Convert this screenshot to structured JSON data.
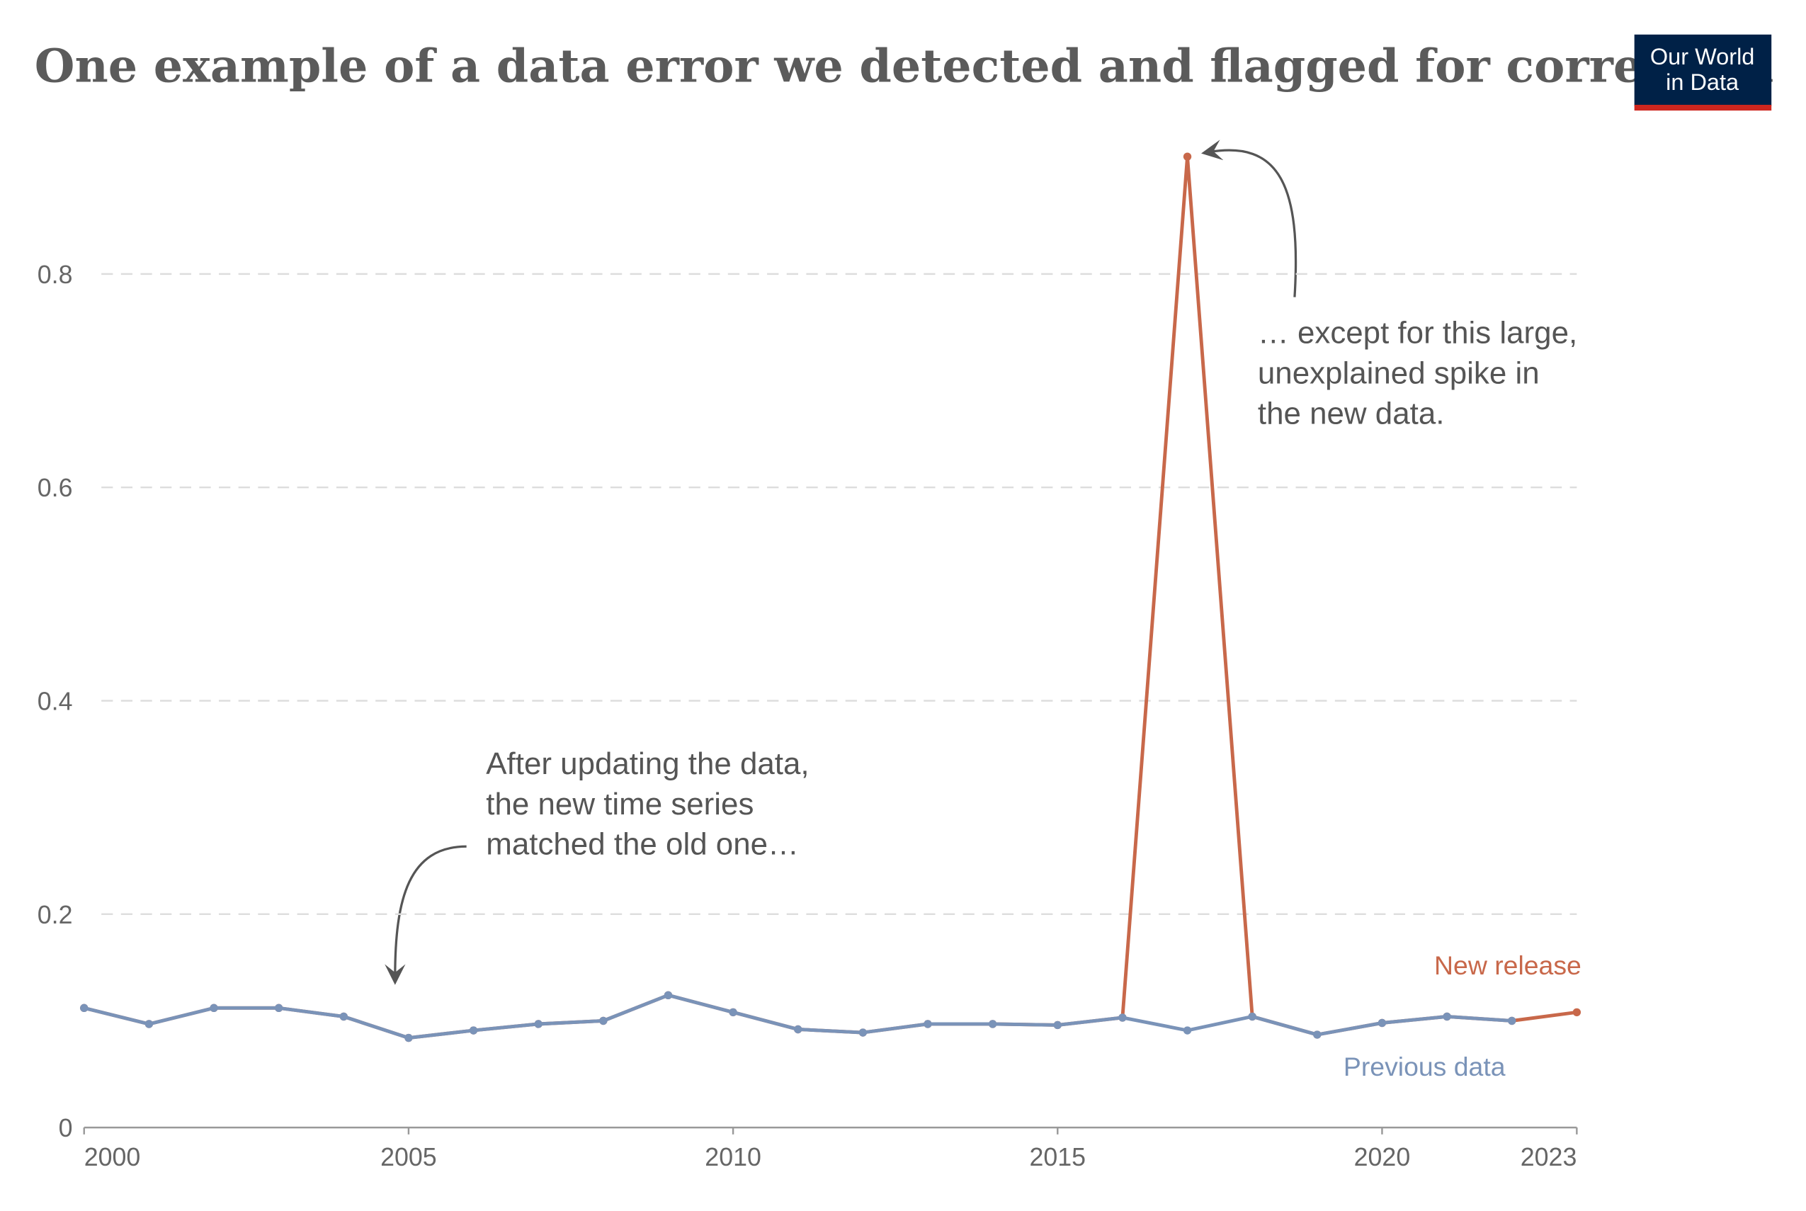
{
  "chart_data": {
    "type": "line",
    "title": "One example of a data error we detected and flagged for correction",
    "logo": [
      "Our World",
      "in Data"
    ],
    "x": [
      2000,
      2001,
      2002,
      2003,
      2004,
      2005,
      2006,
      2007,
      2008,
      2009,
      2010,
      2011,
      2012,
      2013,
      2014,
      2015,
      2016,
      2017,
      2018,
      2019,
      2020,
      2021,
      2022,
      2023
    ],
    "series": [
      {
        "name": "New release",
        "color": "#c8684a",
        "values": [
          0.112,
          0.097,
          0.112,
          0.112,
          0.104,
          0.084,
          0.091,
          0.097,
          0.1,
          0.124,
          0.108,
          0.092,
          0.089,
          0.097,
          0.097,
          0.096,
          0.103,
          0.91,
          0.104,
          0.087,
          0.098,
          0.104,
          0.1,
          0.108
        ]
      },
      {
        "name": "Previous data",
        "color": "#7a93b8",
        "values": [
          0.112,
          0.097,
          0.112,
          0.112,
          0.104,
          0.084,
          0.091,
          0.097,
          0.1,
          0.124,
          0.108,
          0.092,
          0.089,
          0.097,
          0.097,
          0.096,
          0.103,
          0.091,
          0.104,
          0.087,
          0.098,
          0.104,
          0.1,
          null
        ]
      }
    ],
    "xlim": [
      2000,
      2023
    ],
    "xticks": [
      2000,
      2005,
      2010,
      2015,
      2020,
      2023
    ],
    "ylim": [
      0,
      0.91
    ],
    "yticks": [
      0,
      0.2,
      0.4,
      0.6,
      0.8
    ],
    "grid": true,
    "annotations": [
      {
        "lines": [
          "After updating the data,",
          "the new time series",
          "matched the old one…"
        ]
      },
      {
        "lines": [
          "… except for this large,",
          "unexplained spike in",
          "the new data."
        ]
      }
    ]
  }
}
